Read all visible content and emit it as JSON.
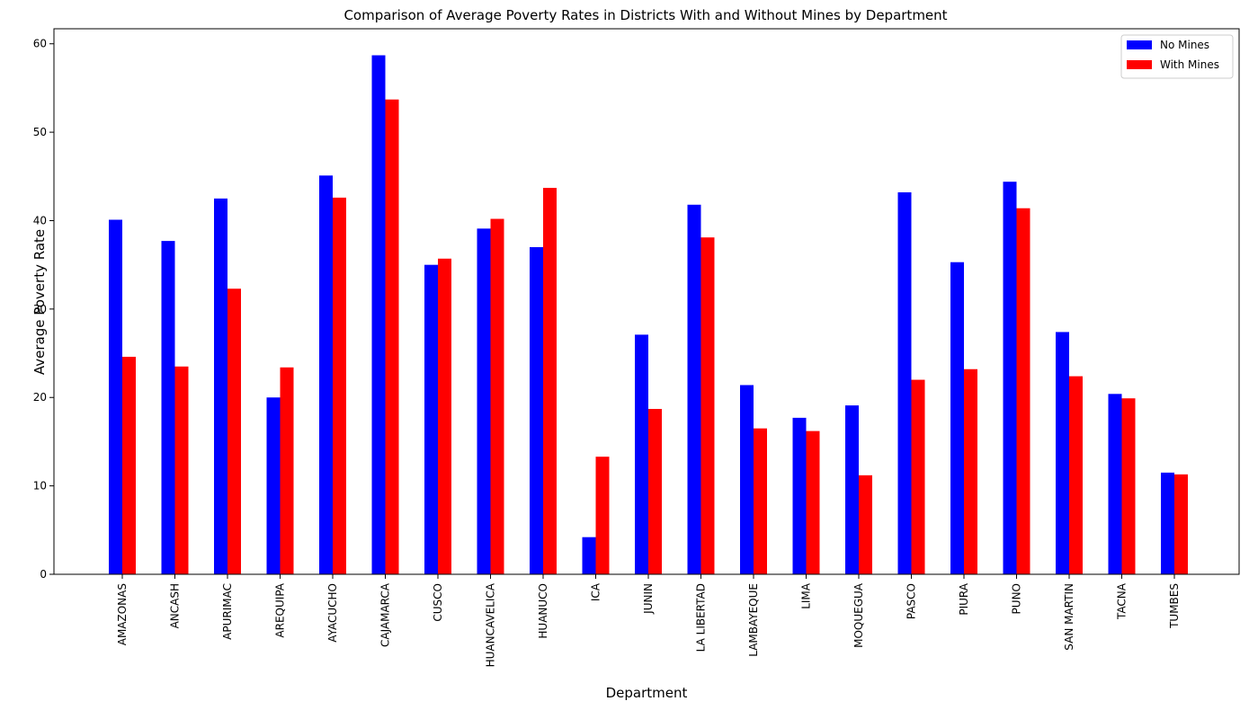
{
  "chart_data": {
    "type": "bar",
    "title": "Comparison of Average Poverty Rates in Districts With and Without Mines by Department",
    "xlabel": "Department",
    "ylabel": "Average Poverty Rate",
    "ylim": [
      0,
      61.7
    ],
    "yticks": [
      0,
      10,
      20,
      30,
      40,
      50,
      60
    ],
    "grid": false,
    "legend_position": "top-right",
    "categories": [
      "AMAZONAS",
      "ANCASH",
      "APURIMAC",
      "AREQUIPA",
      "AYACUCHO",
      "CAJAMARCA",
      "CUSCO",
      "HUANCAVELICA",
      "HUANUCO",
      "ICA",
      "JUNIN",
      "LA LIBERTAD",
      "LAMBAYEQUE",
      "LIMA",
      "MOQUEGUA",
      "PASCO",
      "PIURA",
      "PUNO",
      "SAN MARTIN",
      "TACNA",
      "TUMBES"
    ],
    "series": [
      {
        "name": "No Mines",
        "color": "#0000ff",
        "values": [
          40.1,
          37.7,
          42.5,
          20.0,
          45.1,
          58.7,
          35.0,
          39.1,
          37.0,
          4.2,
          27.1,
          41.8,
          21.4,
          17.7,
          19.1,
          43.2,
          35.3,
          44.4,
          27.4,
          20.4,
          11.5
        ]
      },
      {
        "name": "With Mines",
        "color": "#ff0000",
        "values": [
          24.6,
          23.5,
          32.3,
          23.4,
          42.6,
          53.7,
          35.7,
          40.2,
          43.7,
          13.3,
          18.7,
          38.1,
          16.5,
          16.2,
          11.2,
          22.0,
          23.2,
          41.4,
          22.4,
          19.9,
          11.3
        ]
      }
    ]
  }
}
